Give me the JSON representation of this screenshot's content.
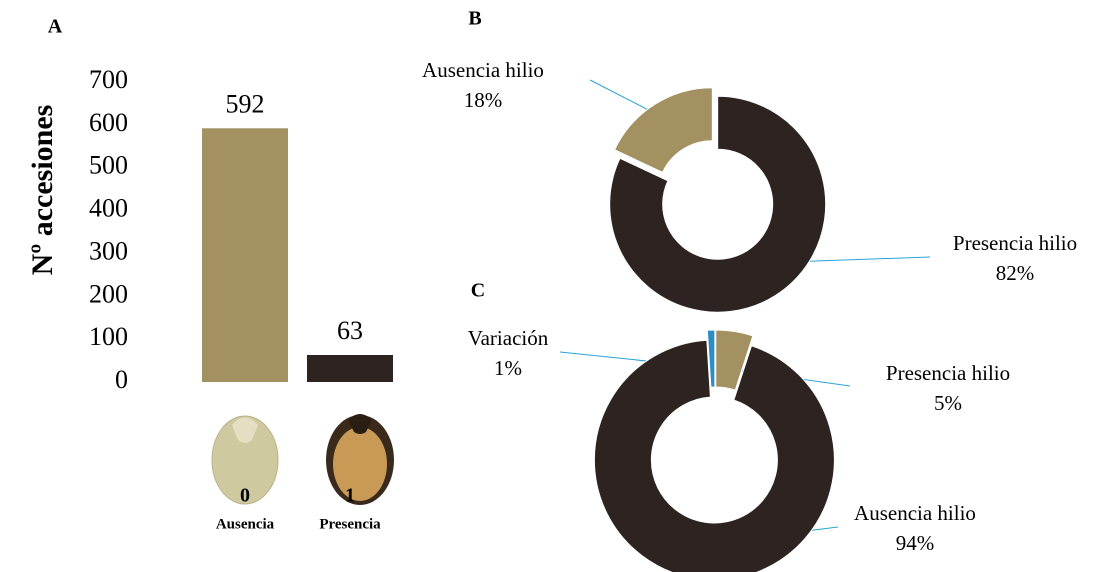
{
  "chart_data": [
    {
      "type": "bar",
      "panel": "A",
      "y_label": "Nº accesiones",
      "categories": [
        "0",
        "1"
      ],
      "category_names": [
        "Ausencia",
        "Presencia"
      ],
      "values": [
        592,
        63
      ],
      "colors": [
        "#a39162",
        "#2d2422"
      ],
      "ylim": [
        0,
        700
      ],
      "yticks": [
        0,
        100,
        200,
        300,
        400,
        500,
        600,
        700
      ],
      "grid": false
    },
    {
      "type": "donut",
      "panel": "B",
      "categories": [
        "Ausencia hilio",
        "Presencia hilio"
      ],
      "values": [
        18,
        82
      ],
      "value_labels": [
        "18%",
        "82%"
      ],
      "colors": [
        "#a39162",
        "#2d2422"
      ]
    },
    {
      "type": "donut",
      "panel": "C",
      "categories": [
        "Variación",
        "Presencia hilio",
        "Ausencia hilio"
      ],
      "values": [
        1,
        5,
        94
      ],
      "value_labels": [
        "1%",
        "5%",
        "94%"
      ],
      "colors": [
        "#2c8ec4",
        "#a39162",
        "#2d2422"
      ]
    }
  ]
}
